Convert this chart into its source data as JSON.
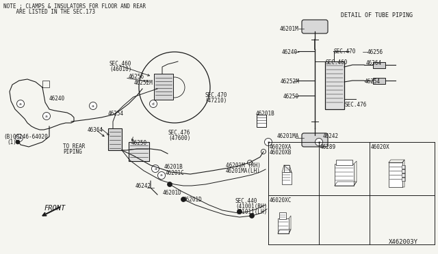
{
  "bg_color": "#f5f5f0",
  "line_color": "#1a1a1a",
  "title_note_line1": "NOTE ; CLAMPS & INSULATORS FOR FLOOR AND REAR",
  "title_note_line2": "    ARE LISTED IN THE SEC.173",
  "detail_title": "DETAIL OF TUBE PIPING",
  "diagram_id": "X462003Y",
  "fs": 5.5,
  "fs_note": 5.5,
  "fs_title": 6.0,
  "fs_id": 6.5
}
